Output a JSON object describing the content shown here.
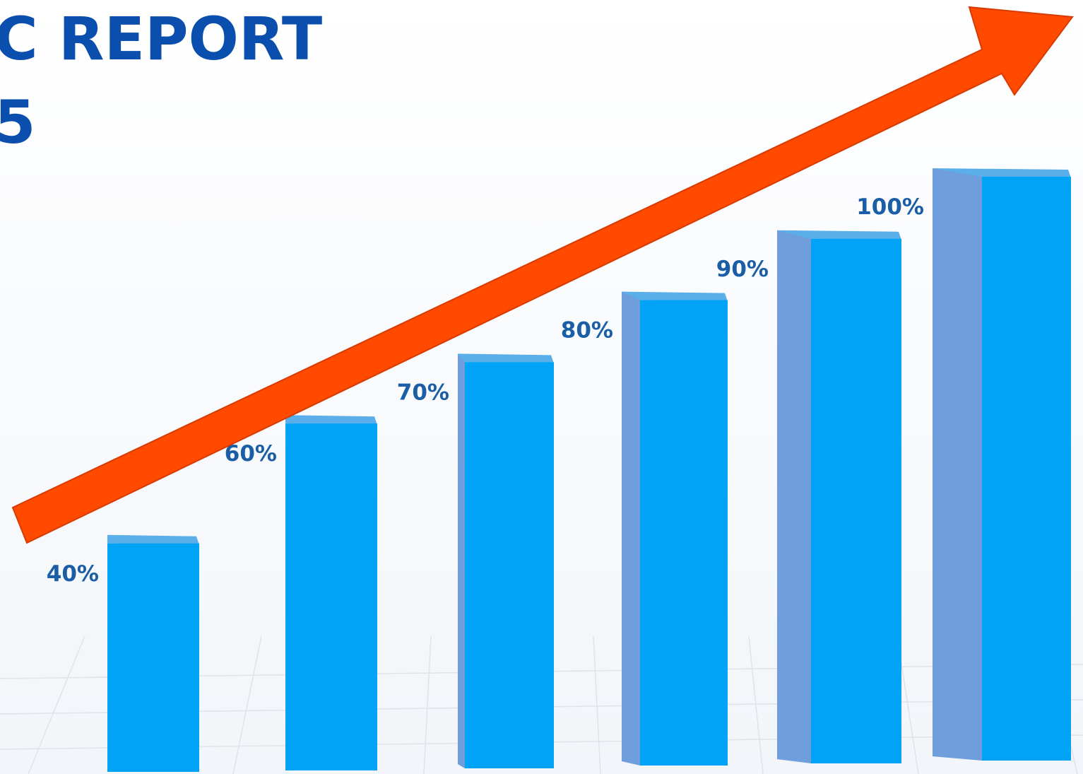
{
  "chart_data": {
    "type": "bar",
    "title_lines": [
      "C REPORT",
      "5"
    ],
    "values": [
      40,
      60,
      70,
      80,
      90,
      100
    ],
    "value_labels": [
      "40%",
      "60%",
      "70%",
      "80%",
      "90%",
      "100%"
    ],
    "color": "#00a3f5"
  }
}
